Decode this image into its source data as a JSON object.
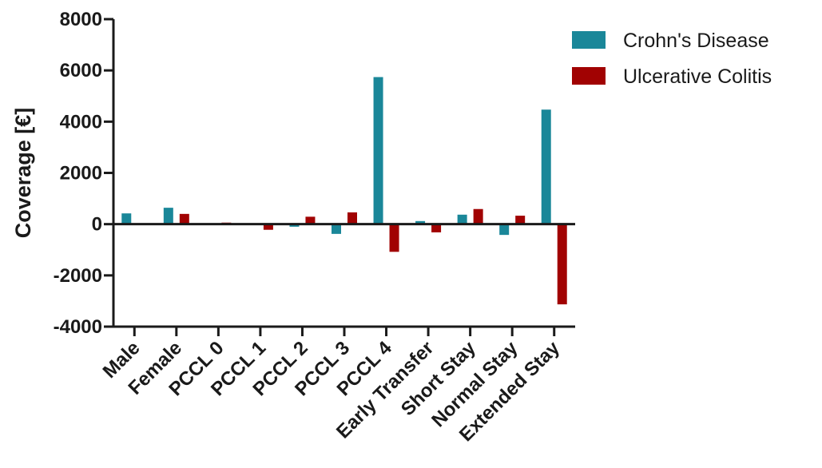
{
  "chart_data": {
    "type": "bar",
    "title": "",
    "xlabel": "",
    "ylabel": "Coverage [€]",
    "ylim": [
      -4000,
      8000
    ],
    "yticks": [
      8000,
      6000,
      4000,
      2000,
      0,
      -2000,
      -4000
    ],
    "grid": false,
    "legend_position": "top-right",
    "categories": [
      "Male",
      "Female",
      "PCCL 0",
      "PCCL 1",
      "PCCL 2",
      "PCCL 3",
      "PCCL 4",
      "Early Transfer",
      "Short Stay",
      "Normal Stay",
      "Extended Stay"
    ],
    "series": [
      {
        "name": "Crohn's Disease",
        "color": "#1a8799",
        "values": [
          420,
          640,
          0,
          0,
          -100,
          -380,
          5740,
          120,
          370,
          -420,
          4470
        ]
      },
      {
        "name": "Ulcerative Colitis",
        "color": "#a10202",
        "values": [
          0,
          400,
          60,
          -220,
          290,
          460,
          -1080,
          -320,
          590,
          330,
          -3130
        ]
      }
    ]
  }
}
